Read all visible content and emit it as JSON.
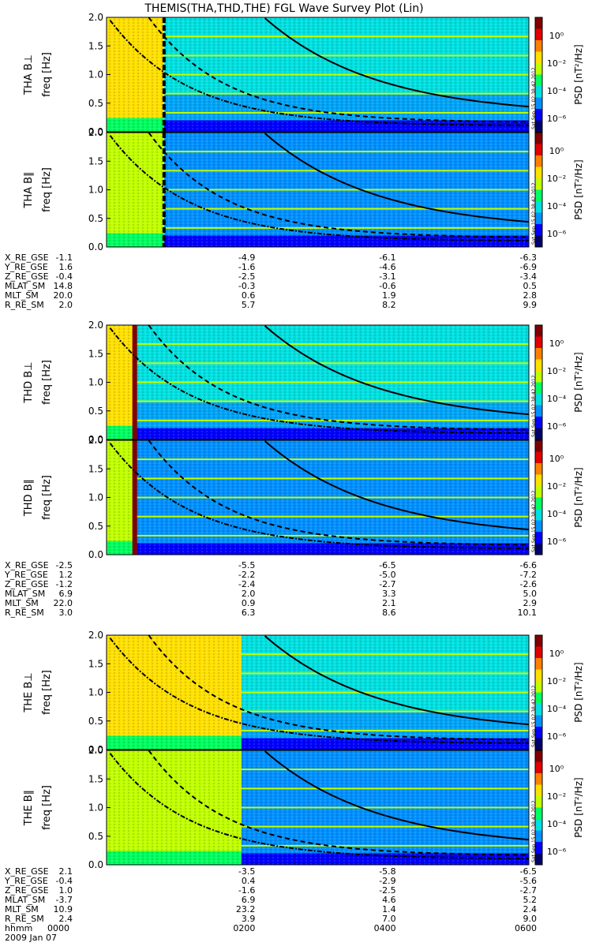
{
  "title": "THEMIS(THA,THD,THE) FGL Wave Survey Plot (Lin)",
  "ylabel": "freq [Hz]",
  "colorbar": {
    "label": "PSD [nT²/Hz]",
    "ticks": [
      "10⁰",
      "10⁻²",
      "10⁻⁴",
      "10⁻⁶"
    ]
  },
  "stamp": "Sat Sep 15 02:38:42 2012",
  "ephem_labels": [
    "X_RE_GSE",
    "Y_RE_GSE",
    "Z_RE_GSE",
    "MLAT_SM",
    "MLT_SM",
    "R_RE_SM"
  ],
  "time_label": "hhmm",
  "time_ticks": [
    "0000",
    "0200",
    "0400",
    "0600"
  ],
  "date": "2009 Jan 07",
  "palette": [
    "#00006b",
    "#0000ff",
    "#0090ff",
    "#00e0e0",
    "#00ff60",
    "#c0ff00",
    "#ffe000",
    "#ff8000",
    "#e00000",
    "#800000"
  ],
  "chart_data": {
    "type": "heatmap",
    "x_range_hhmm": [
      "0000",
      "0600"
    ],
    "ylim": [
      0,
      2.0
    ],
    "yticks": [
      "0.0",
      "0.5",
      "1.0",
      "1.5",
      "2.0"
    ],
    "color_scale": "log PSD nT^2/Hz, 10^-6 to 10^1",
    "groups": [
      {
        "probe": "THA",
        "panels": [
          {
            "name": "THA B⊥",
            "data_start_hhmm": "0000",
            "transition_hhmm": "0049"
          },
          {
            "name": "THA B∥",
            "data_start_hhmm": "0000",
            "transition_hhmm": "0049"
          }
        ],
        "ephemeris": {
          "X_RE_GSE": [
            "-1.1",
            "-4.9",
            "-6.1",
            "-6.3"
          ],
          "Y_RE_GSE": [
            "1.6",
            "-1.6",
            "-4.6",
            "-6.9"
          ],
          "Z_RE_GSE": [
            "-0.4",
            "-2.5",
            "-3.1",
            "-3.4"
          ],
          "MLAT_SM": [
            "14.8",
            "-0.3",
            "-0.6",
            "0.5"
          ],
          "MLT_SM": [
            "20.0",
            "0.6",
            "1.9",
            "2.8"
          ],
          "R_RE_SM": [
            "2.0",
            "5.7",
            "8.2",
            "9.9"
          ]
        }
      },
      {
        "probe": "THD",
        "panels": [
          {
            "name": "THD B⊥",
            "data_start_hhmm": "0000",
            "transition_hhmm": "0024"
          },
          {
            "name": "THD B∥",
            "data_start_hhmm": "0000",
            "transition_hhmm": "0024"
          }
        ],
        "ephemeris": {
          "X_RE_GSE": [
            "-2.5",
            "-5.5",
            "-6.5",
            "-6.6"
          ],
          "Y_RE_GSE": [
            "1.2",
            "-2.2",
            "-5.0",
            "-7.2"
          ],
          "Z_RE_GSE": [
            "-1.2",
            "-2.4",
            "-2.7",
            "-2.6"
          ],
          "MLAT_SM": [
            "6.9",
            "2.0",
            "3.3",
            "5.0"
          ],
          "MLT_SM": [
            "22.0",
            "0.9",
            "2.1",
            "2.9"
          ],
          "R_RE_SM": [
            "3.0",
            "6.3",
            "8.6",
            "10.1"
          ]
        }
      },
      {
        "probe": "THE",
        "panels": [
          {
            "name": "THE B⊥",
            "data_start_hhmm": "0000",
            "transition_hhmm": "0155"
          },
          {
            "name": "THE B∥",
            "data_start_hhmm": "0000",
            "transition_hhmm": "0155"
          }
        ],
        "ephemeris": {
          "X_RE_GSE": [
            "2.1",
            "-3.5",
            "-5.8",
            "-6.5"
          ],
          "Y_RE_GSE": [
            "-0.4",
            "0.4",
            "-2.9",
            "-5.6"
          ],
          "Z_RE_GSE": [
            "1.0",
            "-1.6",
            "-2.5",
            "-2.7"
          ],
          "MLAT_SM": [
            "-3.7",
            "6.9",
            "4.6",
            "5.2"
          ],
          "MLT_SM": [
            "10.9",
            "23.2",
            "1.4",
            "2.4"
          ],
          "R_RE_SM": [
            "2.4",
            "3.9",
            "7.0",
            "9.0"
          ]
        }
      }
    ]
  }
}
